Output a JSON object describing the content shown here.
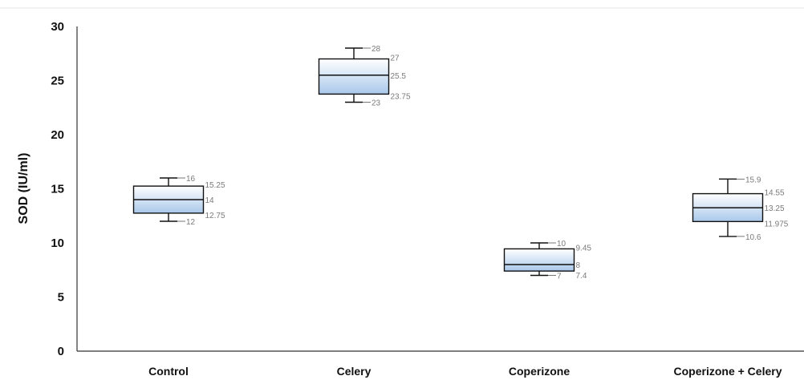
{
  "chart_data": {
    "type": "box",
    "ylabel": "SOD (IU/ml)",
    "ylim": [
      0,
      30
    ],
    "yticks": [
      0,
      5,
      10,
      15,
      20,
      25,
      30
    ],
    "grid": false,
    "categories": [
      "Control",
      "Celery",
      "Coperizone",
      "Coperizone + Celery"
    ],
    "boxes": [
      {
        "category": "Control",
        "min": 12,
        "q1": 12.75,
        "median": 14,
        "q3": 15.25,
        "max": 16,
        "labels": {
          "min": "12",
          "q1": "12.75",
          "median": "14",
          "q3": "15.25",
          "max": "16"
        }
      },
      {
        "category": "Celery",
        "min": 23,
        "q1": 23.75,
        "median": 25.5,
        "q3": 27,
        "max": 28,
        "labels": {
          "min": "23",
          "q1": "23.75",
          "median": "25.5",
          "q3": "27",
          "max": "28"
        }
      },
      {
        "category": "Coperizone",
        "min": 7,
        "q1": 7.4,
        "median": 8,
        "q3": 9.45,
        "max": 10,
        "labels": {
          "min": "7",
          "q1": "7.4",
          "median": "8",
          "q3": "9.45",
          "max": "10"
        }
      },
      {
        "category": "Coperizone + Celery",
        "min": 10.6,
        "q1": 11.975,
        "median": 13.25,
        "q3": 14.55,
        "max": 15.9,
        "labels": {
          "min": "10.6",
          "q1": "11.975",
          "median": "13.25",
          "q3": "14.55",
          "max": "15.9"
        }
      }
    ],
    "colors": {
      "box_top": "#ffffff",
      "box_bottom": "#a9c8ea",
      "stroke": "#111111",
      "label": "#7a7a7a"
    }
  }
}
